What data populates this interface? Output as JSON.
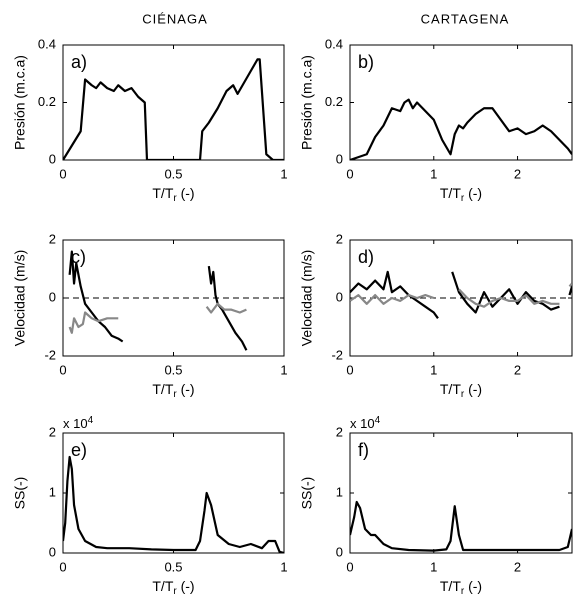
{
  "column_titles": [
    "CIÉNAGA",
    "CARTAGENA"
  ],
  "chart_data": [
    {
      "type": "line",
      "panel_label": "a)",
      "ylabel": "Presión (m.c.a)",
      "xlabel": [
        "T/T",
        "r",
        " (-)"
      ],
      "xlim": [
        0,
        1
      ],
      "ylim": [
        0,
        0.4
      ],
      "xticks": [
        0,
        0.5,
        1
      ],
      "yticks": [
        0,
        0.2,
        0.4
      ],
      "box": true,
      "series": [
        {
          "color": "#000000",
          "x": [
            0,
            0.04,
            0.08,
            0.1,
            0.13,
            0.15,
            0.17,
            0.2,
            0.23,
            0.25,
            0.28,
            0.31,
            0.34,
            0.37,
            0.38,
            0.62,
            0.63,
            0.66,
            0.7,
            0.74,
            0.77,
            0.79,
            0.82,
            0.85,
            0.88,
            0.89,
            0.92,
            0.95,
            1
          ],
          "values": [
            0,
            0.05,
            0.1,
            0.28,
            0.26,
            0.25,
            0.27,
            0.25,
            0.24,
            0.26,
            0.24,
            0.25,
            0.22,
            0.2,
            0,
            0,
            0.1,
            0.13,
            0.18,
            0.24,
            0.26,
            0.23,
            0.27,
            0.31,
            0.35,
            0.35,
            0.02,
            0,
            0
          ]
        }
      ]
    },
    {
      "type": "line",
      "panel_label": "b)",
      "ylabel": "Presión (m.c.a)",
      "xlabel": [
        "T/T",
        "r",
        " (-)"
      ],
      "xlim": [
        0,
        2.65
      ],
      "ylim": [
        0,
        0.4
      ],
      "xticks": [
        0,
        1,
        2
      ],
      "yticks": [
        0,
        0.2,
        0.4
      ],
      "box": true,
      "series": [
        {
          "color": "#000000",
          "x": [
            0,
            0.1,
            0.2,
            0.3,
            0.4,
            0.5,
            0.6,
            0.65,
            0.7,
            0.75,
            0.8,
            0.9,
            1.0,
            1.1,
            1.2,
            1.25,
            1.3,
            1.35,
            1.4,
            1.5,
            1.6,
            1.7,
            1.8,
            1.9,
            2.0,
            2.1,
            2.2,
            2.3,
            2.4,
            2.5,
            2.6,
            2.65
          ],
          "values": [
            0,
            0.01,
            0.02,
            0.08,
            0.12,
            0.18,
            0.17,
            0.2,
            0.21,
            0.18,
            0.2,
            0.17,
            0.14,
            0.07,
            0.02,
            0.09,
            0.12,
            0.11,
            0.13,
            0.16,
            0.18,
            0.18,
            0.14,
            0.1,
            0.11,
            0.09,
            0.1,
            0.12,
            0.1,
            0.07,
            0.04,
            0.02
          ]
        }
      ]
    },
    {
      "type": "line",
      "panel_label": "c)",
      "ylabel": "Velocidad (m/s)",
      "xlabel": [
        "T/T",
        "r",
        " (-)"
      ],
      "xlim": [
        0,
        1
      ],
      "ylim": [
        -2,
        2
      ],
      "xticks": [
        0,
        0.5,
        1
      ],
      "yticks": [
        -2,
        0,
        2
      ],
      "box": true,
      "zero_line": "dashed",
      "series": [
        {
          "color": "#000000",
          "x": [
            0.03,
            0.04,
            0.05,
            0.06,
            0.08,
            0.1,
            0.13,
            0.16,
            0.19,
            0.22,
            0.25,
            0.27,
            null,
            0.66,
            0.67,
            0.68,
            0.69,
            0.7,
            0.72,
            0.75,
            0.78,
            0.81,
            0.83
          ],
          "values": [
            0.8,
            1.6,
            0.5,
            1.2,
            0.4,
            -0.2,
            -0.5,
            -0.8,
            -1.0,
            -1.3,
            -1.4,
            -1.5,
            null,
            1.1,
            0.5,
            0.9,
            0.1,
            -0.2,
            -0.4,
            -0.8,
            -1.2,
            -1.5,
            -1.8
          ]
        },
        {
          "color": "#888888",
          "x": [
            0.03,
            0.04,
            0.05,
            0.07,
            0.09,
            0.1,
            0.13,
            0.16,
            0.2,
            0.25,
            null,
            0.65,
            0.67,
            0.7,
            0.73,
            0.76,
            0.8,
            0.83
          ],
          "values": [
            -1.0,
            -1.2,
            -0.7,
            -1.0,
            -0.9,
            -0.5,
            -0.7,
            -0.8,
            -0.7,
            -0.7,
            null,
            -0.3,
            -0.5,
            -0.2,
            -0.4,
            -0.4,
            -0.5,
            -0.4
          ]
        }
      ]
    },
    {
      "type": "line",
      "panel_label": "d)",
      "ylabel": "Velocidad (m/s)",
      "xlabel": [
        "T/T",
        "r",
        " (-)"
      ],
      "xlim": [
        0,
        2.65
      ],
      "ylim": [
        -2,
        2
      ],
      "xticks": [
        0,
        1,
        2
      ],
      "yticks": [
        -2,
        0,
        2
      ],
      "box": true,
      "zero_line": "dashed",
      "series": [
        {
          "color": "#000000",
          "x": [
            0,
            0.1,
            0.2,
            0.3,
            0.4,
            0.45,
            0.5,
            0.6,
            0.7,
            0.8,
            0.9,
            1.0,
            1.05,
            null,
            1.22,
            1.3,
            1.4,
            1.5,
            1.6,
            1.7,
            1.8,
            1.9,
            2.0,
            2.1,
            2.2,
            2.3,
            2.4,
            2.5,
            null,
            2.62,
            2.65
          ],
          "values": [
            0.2,
            0.5,
            0.3,
            0.6,
            0.3,
            0.9,
            0.2,
            0.4,
            0.1,
            -0.1,
            -0.3,
            -0.5,
            -0.7,
            null,
            0.9,
            0.2,
            -0.2,
            -0.5,
            0.2,
            -0.3,
            0.0,
            0.3,
            -0.2,
            0.2,
            -0.1,
            -0.2,
            -0.4,
            -0.3,
            null,
            0.1,
            0.4
          ]
        },
        {
          "color": "#888888",
          "x": [
            0,
            0.1,
            0.2,
            0.3,
            0.4,
            0.5,
            0.6,
            0.7,
            0.8,
            0.9,
            1.0,
            null,
            1.3,
            1.4,
            1.5,
            1.6,
            1.7,
            1.8,
            1.9,
            2.0,
            2.1,
            2.2,
            2.3,
            2.4,
            2.5,
            null,
            2.62,
            2.65
          ],
          "values": [
            -0.1,
            0.1,
            -0.2,
            0.1,
            -0.2,
            0.0,
            -0.1,
            0.1,
            0.0,
            0.1,
            0.0,
            null,
            0.3,
            0.0,
            -0.2,
            -0.3,
            -0.1,
            0.0,
            -0.1,
            -0.1,
            0.1,
            -0.2,
            -0.1,
            -0.2,
            -0.2,
            null,
            0.4,
            0.5
          ]
        }
      ]
    },
    {
      "type": "line",
      "panel_label": "e)",
      "ylabel": "SS(-)",
      "xlabel": [
        "T/T",
        "r",
        " (-)"
      ],
      "multiplier": [
        "x 10",
        "4"
      ],
      "xlim": [
        0,
        1
      ],
      "ylim": [
        0,
        2
      ],
      "xticks": [
        0,
        0.5,
        1
      ],
      "yticks": [
        0,
        1,
        2
      ],
      "box": true,
      "series": [
        {
          "color": "#000000",
          "x": [
            0,
            0.01,
            0.02,
            0.03,
            0.04,
            0.05,
            0.07,
            0.1,
            0.15,
            0.2,
            0.3,
            0.4,
            0.5,
            0.6,
            0.62,
            0.64,
            0.65,
            0.67,
            0.7,
            0.75,
            0.8,
            0.85,
            0.9,
            0.93,
            0.96,
            0.98,
            1.0
          ],
          "values": [
            0.2,
            0.5,
            1.2,
            1.6,
            1.4,
            0.8,
            0.4,
            0.2,
            0.1,
            0.08,
            0.08,
            0.06,
            0.05,
            0.05,
            0.2,
            0.7,
            1.0,
            0.8,
            0.3,
            0.15,
            0.1,
            0.15,
            0.08,
            0.2,
            0.2,
            0.02,
            0
          ]
        }
      ]
    },
    {
      "type": "line",
      "panel_label": "f)",
      "ylabel": "SS(-)",
      "xlabel": [
        "T/T",
        "r",
        " (-)"
      ],
      "multiplier": [
        "x 10",
        "4"
      ],
      "xlim": [
        0,
        2.65
      ],
      "ylim": [
        0,
        2
      ],
      "xticks": [
        0,
        1,
        2
      ],
      "yticks": [
        0,
        1,
        2
      ],
      "box": true,
      "series": [
        {
          "color": "#000000",
          "x": [
            0,
            0.05,
            0.08,
            0.12,
            0.18,
            0.25,
            0.3,
            0.4,
            0.5,
            0.7,
            1.0,
            1.15,
            1.2,
            1.25,
            1.3,
            1.35,
            1.5,
            2.0,
            2.5,
            2.6,
            2.65
          ],
          "values": [
            0.3,
            0.6,
            0.85,
            0.75,
            0.4,
            0.3,
            0.3,
            0.15,
            0.08,
            0.05,
            0.04,
            0.06,
            0.2,
            0.78,
            0.3,
            0.05,
            0.05,
            0.05,
            0.05,
            0.1,
            0.4
          ]
        }
      ]
    }
  ]
}
